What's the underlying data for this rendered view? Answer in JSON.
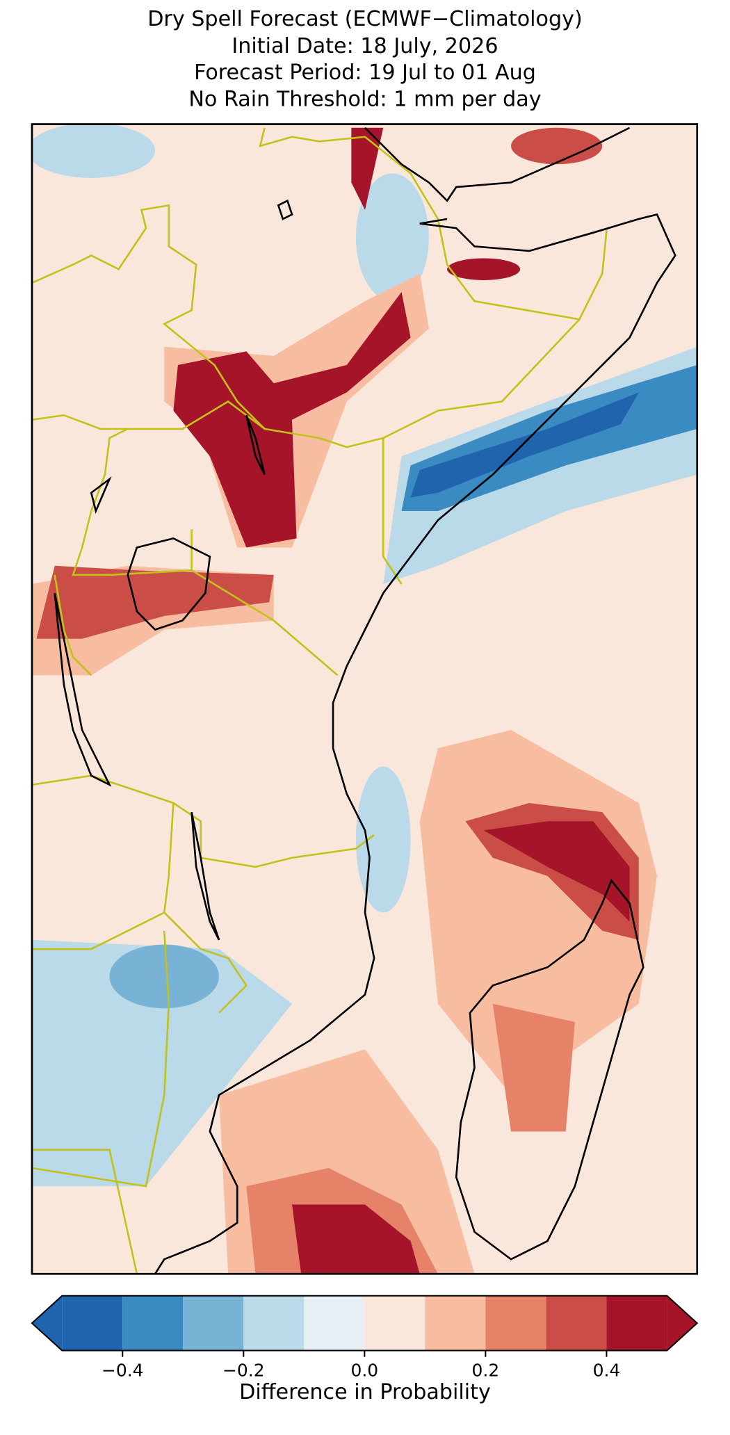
{
  "chart_data": {
    "type": "map",
    "title": [
      "Dry Spell Forecast (ECMWF−Climatology)",
      "Initial Date: 18 July, 2026",
      "Forecast Period: 19 Jul to 01 Aug",
      "No Rain Threshold: 1 mm per day"
    ],
    "colorbar": {
      "levels": [
        -0.5,
        -0.4,
        -0.3,
        -0.2,
        -0.1,
        0,
        0.1,
        0.2,
        0.3,
        0.4,
        0.5
      ],
      "colors": [
        "#1f64ad",
        "#3a8bc2",
        "#78b3d6",
        "#bad9e9",
        "#e7eff4",
        "#fae7dc",
        "#f8bca0",
        "#e58267",
        "#ca4d47",
        "#a51429"
      ],
      "extend": "both",
      "ticks": [
        {
          "value": -0.4,
          "label": "−0.4"
        },
        {
          "value": -0.2,
          "label": "−0.2"
        },
        {
          "value": 0,
          "label": "0.0"
        },
        0.2,
        0.4
      ],
      "label": "Difference in Probability"
    }
  }
}
